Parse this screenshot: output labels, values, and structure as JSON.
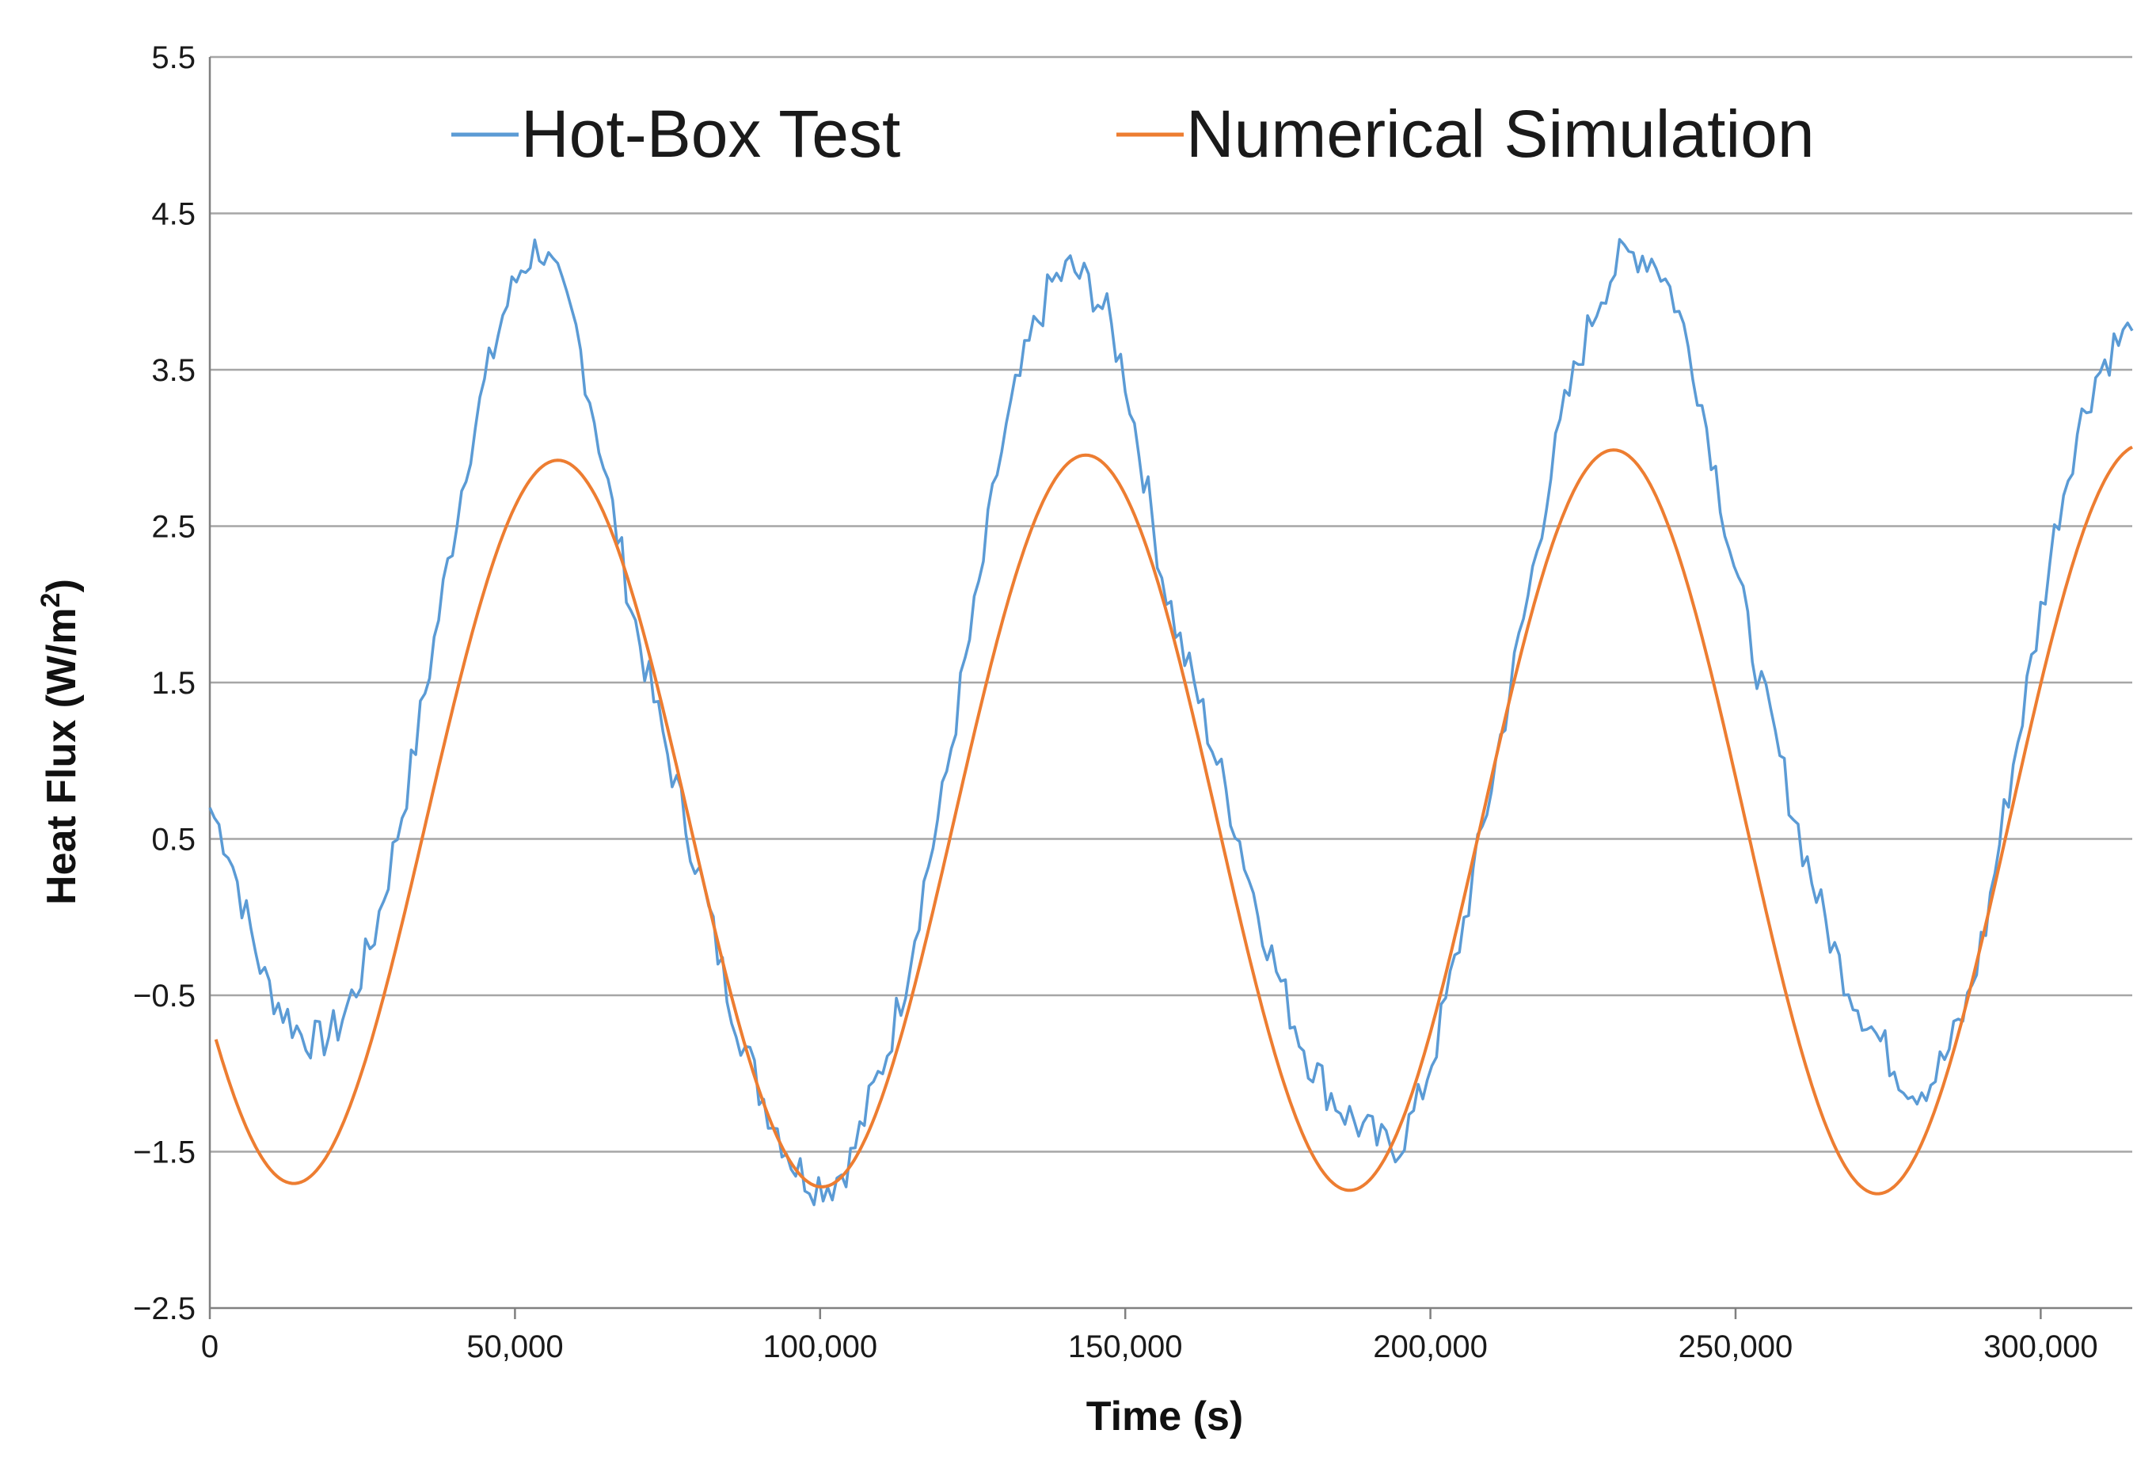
{
  "colors": {
    "hot_box": "#5b9bd5",
    "simulation": "#ed7d31",
    "grid": "#a6a6a6",
    "axis": "#808080",
    "text": "#1a1a1a"
  },
  "chart_data": {
    "type": "line",
    "title": "",
    "xlabel": "Time (s)",
    "ylabel_main": "Heat Flux (W/m",
    "ylabel_sup": "2",
    "ylabel_close": ")",
    "xlim": [
      0,
      315000
    ],
    "ylim": [
      -2.5,
      5.5
    ],
    "xticks": [
      0,
      50000,
      100000,
      150000,
      200000,
      250000,
      300000
    ],
    "xtick_labels": [
      "0",
      "50,000",
      "100,000",
      "150,000",
      "200,000",
      "250,000",
      "300,000"
    ],
    "yticks": [
      -2.5,
      -1.5,
      -0.5,
      0.5,
      1.5,
      2.5,
      3.5,
      4.5,
      5.5
    ],
    "ytick_labels": [
      "−2.5",
      "−1.5",
      "−0.5",
      "0.5",
      "1.5",
      "2.5",
      "3.5",
      "4.5",
      "5.5"
    ],
    "grid": true,
    "legend_position": "top-center",
    "series": [
      {
        "name": "Hot-Box Test",
        "x": [
          0,
          3000,
          6000,
          9000,
          12000,
          15000,
          18000,
          21000,
          24000,
          27000,
          30000,
          33000,
          36000,
          39000,
          42000,
          45000,
          48000,
          51000,
          54000,
          57000,
          60000,
          63000,
          66000,
          69000,
          72000,
          75000,
          78000,
          81000,
          84000,
          87000,
          90000,
          93000,
          96000,
          99000,
          102000,
          105000,
          108000,
          111000,
          114000,
          117000,
          120000,
          123000,
          126000,
          129000,
          132000,
          135000,
          138000,
          141000,
          144000,
          147000,
          150000,
          153000,
          156000,
          159000,
          162000,
          165000,
          168000,
          171000,
          174000,
          177000,
          180000,
          183000,
          186000,
          189000,
          192000,
          195000,
          198000,
          201000,
          204000,
          207000,
          210000,
          213000,
          216000,
          219000,
          222000,
          225000,
          228000,
          231000,
          234000,
          237000,
          240000,
          243000,
          246000,
          249000,
          252000,
          255000,
          258000,
          261000,
          264000,
          267000,
          270000,
          273000,
          276000,
          279000,
          282000,
          285000,
          288000,
          291000,
          294000,
          297000,
          300000,
          303000,
          306000,
          309000,
          312000,
          315000
        ],
        "values": [
          0.7,
          0.45,
          0.0,
          -0.4,
          -0.6,
          -0.75,
          -0.8,
          -0.7,
          -0.45,
          -0.1,
          0.4,
          0.95,
          1.6,
          2.25,
          2.9,
          3.4,
          3.85,
          4.15,
          4.3,
          4.05,
          3.75,
          3.2,
          2.6,
          2.0,
          1.5,
          1.05,
          0.6,
          0.15,
          -0.35,
          -0.75,
          -1.1,
          -1.35,
          -1.6,
          -1.7,
          -1.7,
          -1.55,
          -1.2,
          -0.85,
          -0.4,
          0.2,
          0.75,
          1.45,
          2.1,
          2.85,
          3.35,
          3.75,
          4.05,
          4.15,
          4.05,
          3.85,
          3.45,
          2.85,
          2.2,
          1.75,
          1.4,
          1.0,
          0.6,
          0.15,
          -0.25,
          -0.6,
          -0.9,
          -1.1,
          -1.25,
          -1.35,
          -1.45,
          -1.45,
          -1.2,
          -0.8,
          -0.3,
          0.25,
          0.85,
          1.45,
          2.05,
          2.7,
          3.25,
          3.65,
          4.0,
          4.2,
          4.25,
          4.2,
          3.95,
          3.55,
          3.0,
          2.4,
          1.85,
          1.35,
          0.9,
          0.45,
          0.05,
          -0.3,
          -0.55,
          -0.75,
          -0.95,
          -1.1,
          -1.05,
          -0.85,
          -0.55,
          -0.05,
          0.65,
          1.3,
          1.95,
          2.6,
          3.1,
          3.45,
          3.65,
          3.75
        ]
      },
      {
        "name": "Numerical Simulation",
        "period": 86500,
        "amplitude_start": 2.3,
        "amplitude_end": 2.4,
        "offset_start": 0.6,
        "offset_end": 0.62,
        "phase_x_of_first_max": 57000,
        "x_start": 1000,
        "x_end": 315000
      }
    ],
    "legend": [
      "Hot-Box Test",
      "Numerical Simulation"
    ]
  }
}
